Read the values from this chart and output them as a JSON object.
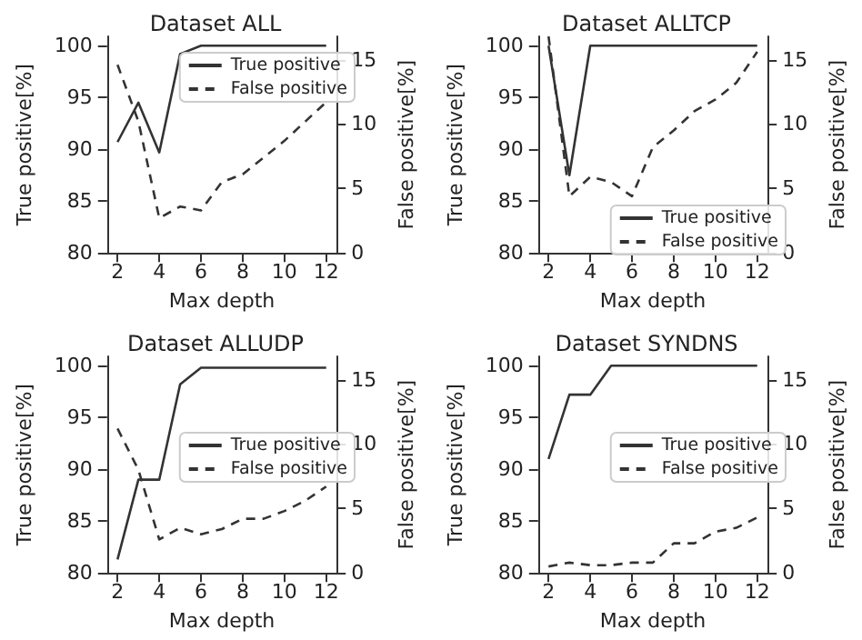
{
  "chart_data": [
    {
      "type": "line",
      "title": "Dataset ALL",
      "xlabel": "Max depth",
      "ylabel": "True positive[%]",
      "y2label": "False positive[%]",
      "x": [
        2,
        3,
        4,
        5,
        6,
        7,
        8,
        9,
        10,
        11,
        12
      ],
      "xlim": [
        1.5,
        12.5
      ],
      "xticks": [
        2,
        4,
        6,
        8,
        10,
        12
      ],
      "ylim": [
        80,
        100.9
      ],
      "yticks": [
        80,
        85,
        90,
        95,
        100
      ],
      "y2lim": [
        0,
        16.8
      ],
      "y2ticks": [
        0,
        5,
        10,
        15
      ],
      "legend": "top right",
      "grid": false,
      "series": [
        {
          "name": "True positive",
          "color": "#333333",
          "line_style": "solid",
          "values": [
            90.7,
            94.5,
            89.7,
            99.2,
            100,
            100,
            100,
            100,
            100,
            100,
            100
          ]
        },
        {
          "name": "False positive",
          "color": "#333333",
          "line_style": "dashed",
          "axis": "y2",
          "values": [
            14.6,
            10.2,
            2.7,
            3.6,
            3.3,
            5.5,
            6.1,
            7.4,
            8.7,
            10.2,
            11.7
          ]
        }
      ]
    },
    {
      "type": "line",
      "title": "Dataset ALLTCP",
      "xlabel": "Max depth",
      "ylabel": "True positive[%]",
      "y2label": "False positive[%]",
      "x": [
        2,
        3,
        4,
        5,
        6,
        7,
        8,
        9,
        10,
        11,
        12
      ],
      "xlim": [
        1.5,
        12.5
      ],
      "xticks": [
        2,
        4,
        6,
        8,
        10,
        12
      ],
      "ylim": [
        80,
        100.9
      ],
      "yticks": [
        80,
        85,
        90,
        95,
        100
      ],
      "y2lim": [
        0,
        16.8
      ],
      "y2ticks": [
        0,
        5,
        10,
        15
      ],
      "legend": "bottom right",
      "grid": false,
      "series": [
        {
          "name": "True positive",
          "color": "#333333",
          "line_style": "solid",
          "values": [
            100,
            87.5,
            100,
            100,
            100,
            100,
            100,
            100,
            100,
            100,
            100
          ]
        },
        {
          "name": "False positive",
          "color": "#333333",
          "line_style": "dashed",
          "axis": "y2",
          "values": [
            16.8,
            4.4,
            5.9,
            5.5,
            4.4,
            8.2,
            9.5,
            11,
            11.9,
            13.2,
            15.6
          ]
        }
      ]
    },
    {
      "type": "line",
      "title": "Dataset ALLUDP",
      "xlabel": "Max depth",
      "ylabel": "True positive[%]",
      "y2label": "False positive[%]",
      "x": [
        2,
        3,
        4,
        5,
        6,
        7,
        8,
        9,
        10,
        11,
        12
      ],
      "xlim": [
        1.5,
        12.5
      ],
      "xticks": [
        2,
        4,
        6,
        8,
        10,
        12
      ],
      "ylim": [
        80,
        100.9
      ],
      "yticks": [
        80,
        85,
        90,
        95,
        100
      ],
      "y2lim": [
        0,
        16.8
      ],
      "y2ticks": [
        0,
        5,
        10,
        15
      ],
      "legend": "right",
      "grid": false,
      "series": [
        {
          "name": "True positive",
          "color": "#333333",
          "line_style": "solid",
          "values": [
            81.3,
            89,
            89,
            98.2,
            99.8,
            99.8,
            99.8,
            99.8,
            99.8,
            99.8,
            99.8
          ]
        },
        {
          "name": "False positive",
          "color": "#333333",
          "line_style": "dashed",
          "axis": "y2",
          "values": [
            11.2,
            8,
            2.6,
            3.5,
            3,
            3.4,
            4.2,
            4.2,
            4.8,
            5.6,
            6.7
          ]
        }
      ]
    },
    {
      "type": "line",
      "title": "Dataset SYNDNS",
      "xlabel": "Max depth",
      "ylabel": "True positive[%]",
      "y2label": "False positive[%]",
      "x": [
        2,
        3,
        4,
        5,
        6,
        7,
        8,
        9,
        10,
        11,
        12
      ],
      "xlim": [
        1.5,
        12.5
      ],
      "xticks": [
        2,
        4,
        6,
        8,
        10,
        12
      ],
      "ylim": [
        80,
        100.9
      ],
      "yticks": [
        80,
        85,
        90,
        95,
        100
      ],
      "y2lim": [
        0,
        16.8
      ],
      "y2ticks": [
        0,
        5,
        10,
        15
      ],
      "legend": "right",
      "grid": false,
      "series": [
        {
          "name": "True positive",
          "color": "#333333",
          "line_style": "solid",
          "values": [
            91,
            97.2,
            97.2,
            100,
            100,
            100,
            100,
            100,
            100,
            100,
            100
          ]
        },
        {
          "name": "False positive",
          "color": "#333333",
          "line_style": "dashed",
          "axis": "y2",
          "values": [
            0.5,
            0.8,
            0.6,
            0.6,
            0.8,
            0.8,
            2.3,
            2.3,
            3.2,
            3.5,
            4.3
          ]
        }
      ]
    }
  ]
}
